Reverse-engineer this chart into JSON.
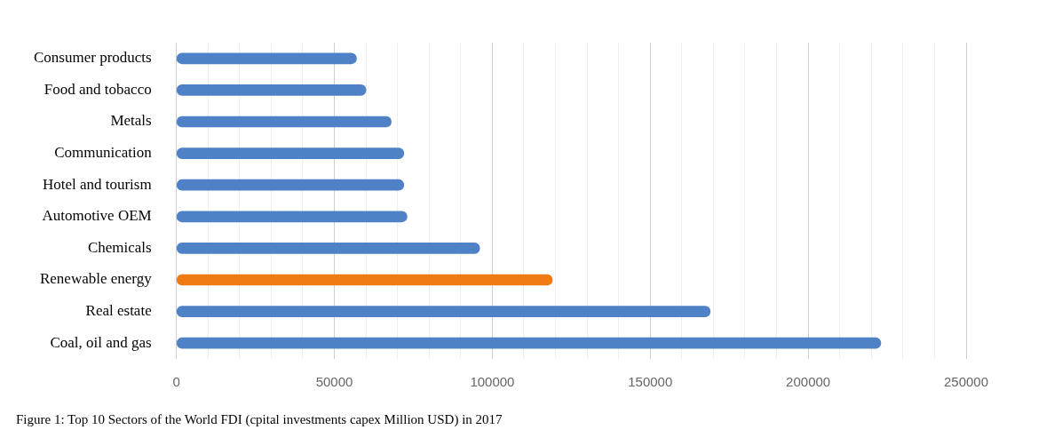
{
  "chart_data": {
    "type": "bar",
    "orientation": "horizontal",
    "categories": [
      "Consumer products",
      "Food and tobacco",
      "Metals",
      "Communication",
      "Hotel and tourism",
      "Automotive OEM",
      "Chemicals",
      "Renewable energy",
      "Real estate",
      "Coal, oil and gas"
    ],
    "values": [
      57000,
      60000,
      68000,
      72000,
      72000,
      73000,
      96000,
      119000,
      169000,
      223000
    ],
    "colors": [
      "#4f81c7",
      "#4f81c7",
      "#4f81c7",
      "#4f81c7",
      "#4f81c7",
      "#4f81c7",
      "#4f81c7",
      "#f07a14",
      "#4f81c7",
      "#4f81c7"
    ],
    "xlim": [
      0,
      250000
    ],
    "xticks": [
      0,
      {
        "value": 10000,
        "label": null
      },
      {
        "value": 20000,
        "label": null
      },
      {
        "value": 30000,
        "label": null
      },
      {
        "value": 40000,
        "label": null
      },
      50000,
      {
        "value": 60000,
        "label": null
      },
      {
        "value": 70000,
        "label": null
      },
      {
        "value": 80000,
        "label": null
      },
      {
        "value": 90000,
        "label": null
      },
      100000,
      {
        "value": 110000,
        "label": null
      },
      {
        "value": 120000,
        "label": null
      },
      {
        "value": 130000,
        "label": null
      },
      {
        "value": 140000,
        "label": null
      },
      150000,
      {
        "value": 160000,
        "label": null
      },
      {
        "value": 170000,
        "label": null
      },
      {
        "value": 180000,
        "label": null
      },
      {
        "value": 190000,
        "label": null
      },
      200000,
      {
        "value": 210000,
        "label": null
      },
      {
        "value": 220000,
        "label": null
      },
      {
        "value": 230000,
        "label": null
      },
      {
        "value": 240000,
        "label": null
      },
      250000
    ],
    "grid": "x",
    "legend": false,
    "annotations": [
      "Figure 1: Top 10 Sectors of the World FDI (cpital investments capex Million USD) in 2017"
    ]
  }
}
